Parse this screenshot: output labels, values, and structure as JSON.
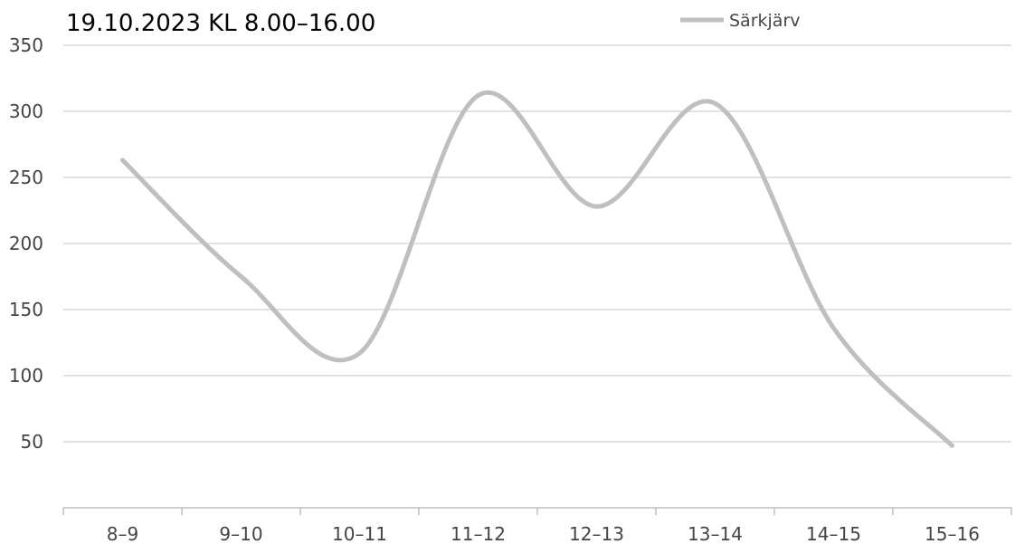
{
  "chart_data": {
    "type": "line",
    "title": "19.10.2023 KL 8.00–16.00",
    "xlabel": "",
    "ylabel": "",
    "categories": [
      "8–9",
      "9–10",
      "10–11",
      "11–12",
      "12–13",
      "13–14",
      "14–15",
      "15–16"
    ],
    "series": [
      {
        "name": "Särkjärv",
        "values": [
          263,
          175,
          117,
          312,
          228,
          306,
          136,
          47
        ],
        "color": "#bfbfbf"
      }
    ],
    "ylim": [
      0,
      350
    ],
    "yticks": [
      50,
      100,
      150,
      200,
      250,
      300,
      350
    ],
    "grid": true,
    "smooth": true,
    "legend_position": "top-right"
  }
}
